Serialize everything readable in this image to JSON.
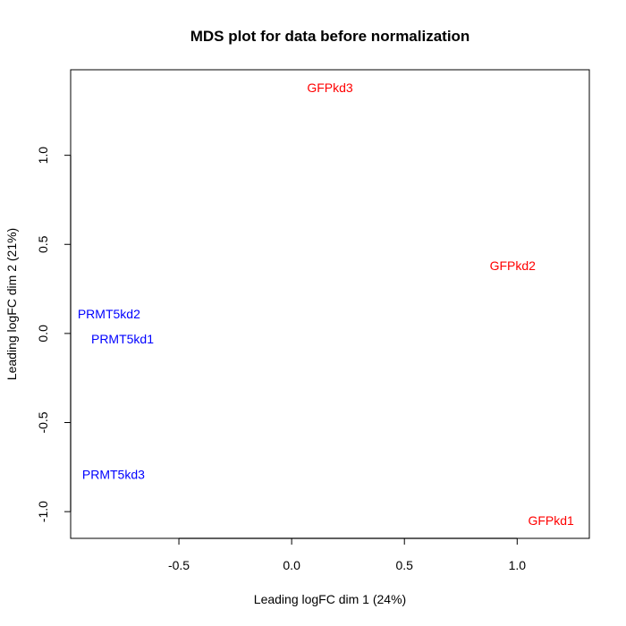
{
  "chart_data": {
    "type": "scatter",
    "title": "MDS plot for data before normalization",
    "xlabel": "Leading logFC dim 1 (24%)",
    "ylabel": "Leading logFC dim 2 (21%)",
    "xlim": [
      -0.98,
      1.32
    ],
    "ylim": [
      -1.15,
      1.48
    ],
    "xticks": [
      -0.5,
      0.0,
      0.5,
      1.0
    ],
    "xtick_labels": [
      "-0.5",
      "0.0",
      "0.5",
      "1.0"
    ],
    "yticks": [
      -1.0,
      -0.5,
      0.0,
      0.5,
      1.0
    ],
    "ytick_labels": [
      "-1.0",
      "-0.5",
      "0.0",
      "0.5",
      "1.0"
    ],
    "grid": false,
    "legend": "none",
    "points": [
      {
        "label": "GFPkd3",
        "x": 0.17,
        "y": 1.38,
        "color": "#ff0000"
      },
      {
        "label": "GFPkd2",
        "x": 0.98,
        "y": 0.38,
        "color": "#ff0000"
      },
      {
        "label": "PRMT5kd2",
        "x": -0.81,
        "y": 0.11,
        "color": "#0000ff"
      },
      {
        "label": "PRMT5kd1",
        "x": -0.75,
        "y": -0.03,
        "color": "#0000ff"
      },
      {
        "label": "PRMT5kd3",
        "x": -0.79,
        "y": -0.79,
        "color": "#0000ff"
      },
      {
        "label": "GFPkd1",
        "x": 1.15,
        "y": -1.05,
        "color": "#ff0000"
      }
    ]
  }
}
